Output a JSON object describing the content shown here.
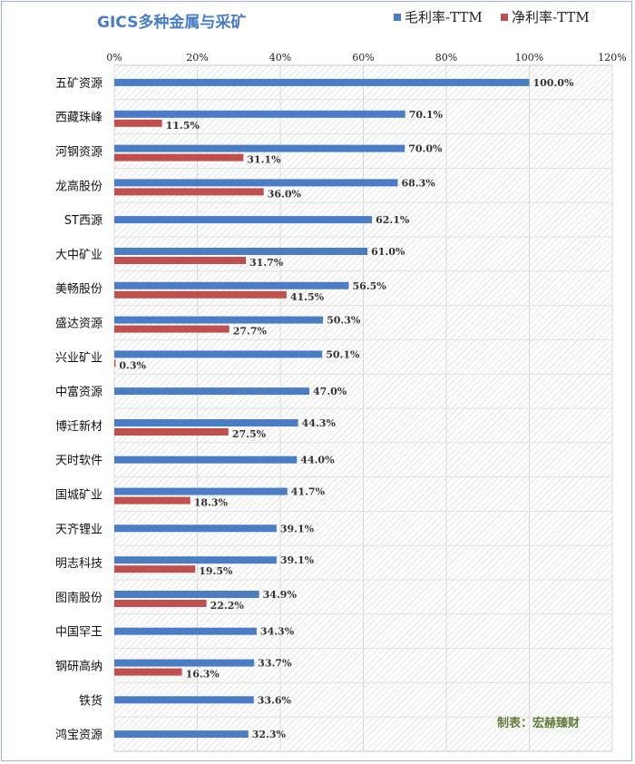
{
  "chart_data": {
    "type": "bar",
    "orientation": "horizontal",
    "title": "GICS多种金属与采矿",
    "categories": [
      "五矿资源",
      "西藏珠峰",
      "河钢资源",
      "龙高股份",
      "ST西源",
      "大中矿业",
      "美畅股份",
      "盛达资源",
      "兴业矿业",
      "中富资源",
      "博迁新材",
      "天时软件",
      "国城矿业",
      "天齐锂业",
      "明志科技",
      "图南股份",
      "中国罕王",
      "钢研高纳",
      "铁货",
      "鸿宝资源"
    ],
    "series": [
      {
        "name": "毛利率-TTM",
        "color": "#4a7dc4",
        "values": [
          100.0,
          70.1,
          70.0,
          68.3,
          62.1,
          61.0,
          56.5,
          50.3,
          50.1,
          47.0,
          44.3,
          44.0,
          41.7,
          39.1,
          39.1,
          34.9,
          34.3,
          33.7,
          33.6,
          32.3
        ],
        "labels": [
          "100.0%",
          "70.1%",
          "70.0%",
          "68.3%",
          "62.1%",
          "61.0%",
          "56.5%",
          "50.3%",
          "50.1%",
          "47.0%",
          "44.3%",
          "44.0%",
          "41.7%",
          "39.1%",
          "39.1%",
          "34.9%",
          "34.3%",
          "33.7%",
          "33.6%",
          "32.3%"
        ]
      },
      {
        "name": "净利率-TTM",
        "color": "#c0504d",
        "values": [
          null,
          11.5,
          31.1,
          36.0,
          null,
          31.7,
          41.5,
          27.7,
          0.3,
          null,
          27.5,
          null,
          18.3,
          null,
          19.5,
          22.2,
          null,
          16.3,
          null,
          null
        ],
        "labels": [
          null,
          "11.5%",
          "31.1%",
          "36.0%",
          null,
          "31.7%",
          "41.5%",
          "27.7%",
          "0.3%",
          null,
          "27.5%",
          null,
          "18.3%",
          null,
          "19.5%",
          "22.2%",
          null,
          "16.3%",
          null,
          null
        ]
      }
    ],
    "xlim": [
      0,
      120
    ],
    "xticks": [
      "0%",
      "20%",
      "40%",
      "60%",
      "80%",
      "100%",
      "120%"
    ],
    "xtick_values": [
      0,
      20,
      40,
      60,
      80,
      100,
      120
    ],
    "axis_position": "top",
    "legend_position": "top-right",
    "grid": true,
    "credit": "制表：宏赫臻财"
  }
}
